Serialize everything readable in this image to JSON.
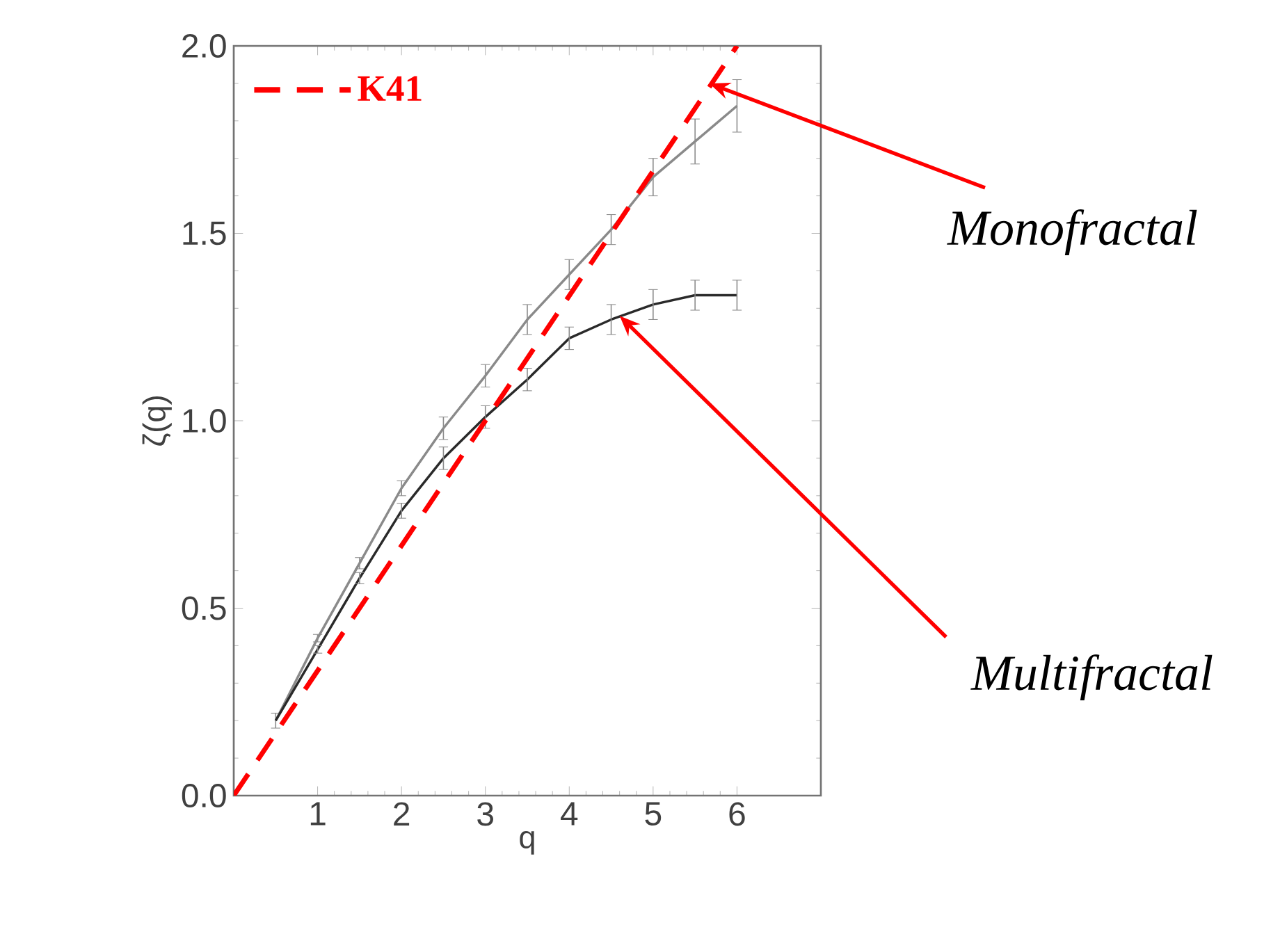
{
  "chart_data": {
    "type": "line",
    "xlabel": "q",
    "ylabel": "ζ(q)",
    "xlim": [
      0,
      7
    ],
    "ylim": [
      0,
      2
    ],
    "xticks": [
      1,
      2,
      3,
      4,
      5,
      6
    ],
    "yticks": [
      {
        "value": 0,
        "label": "0.0"
      },
      {
        "value": 0.5,
        "label": "0.5"
      },
      {
        "value": 1,
        "label": "1.0"
      },
      {
        "value": 1.5,
        "label": "1.5"
      },
      {
        "value": 2,
        "label": "2.0"
      }
    ],
    "grid": false,
    "legend": "top left",
    "marker": "none",
    "series": [
      {
        "color": "#8a8a8a",
        "line_style": "solid",
        "x": [
          0.5,
          1,
          1.5,
          2,
          2.5,
          3,
          3.5,
          4,
          4.5,
          5,
          5.5,
          6
        ],
        "values": [
          0.2,
          0.42,
          0.62,
          0.82,
          0.98,
          1.12,
          1.27,
          1.39,
          1.51,
          1.65,
          1.745,
          1.84
        ],
        "errors": [
          0.02,
          0.01,
          0.015,
          0.02,
          0.03,
          0.03,
          0.04,
          0.04,
          0.04,
          0.05,
          0.06,
          0.07
        ]
      },
      {
        "color": "#2a2a2a",
        "line_style": "solid",
        "x": [
          0.5,
          1,
          1.5,
          2,
          2.5,
          3,
          3.5,
          4,
          4.5,
          5,
          5.5,
          6
        ],
        "values": [
          0.2,
          0.39,
          0.58,
          0.76,
          0.9,
          1.01,
          1.11,
          1.22,
          1.27,
          1.31,
          1.335,
          1.335
        ],
        "errors": [
          null,
          0.01,
          0.015,
          0.02,
          0.03,
          0.03,
          0.03,
          0.03,
          0.04,
          0.04,
          0.04,
          0.04
        ]
      },
      {
        "name": "K41",
        "color": "#ff0000",
        "line_style": "dashed",
        "x": [
          0,
          6
        ],
        "values": [
          0,
          2
        ]
      }
    ],
    "annotations": [
      {
        "text": "Monofractal",
        "x": 5.67,
        "y": 1.9
      },
      {
        "text": "Multifractal",
        "x": 4.6,
        "y": 1.28
      }
    ]
  }
}
